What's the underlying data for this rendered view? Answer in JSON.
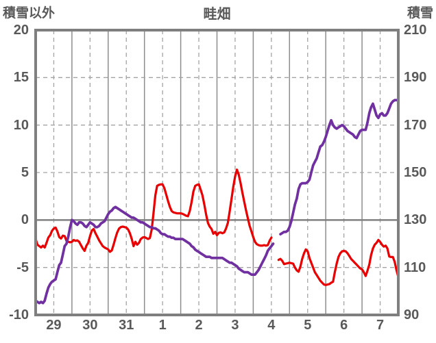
{
  "header": {
    "title": "畦畑",
    "left_axis_label": "積雪以外",
    "right_axis_label": "積雪"
  },
  "colors": {
    "background": "#ffffff",
    "text": "#595959",
    "frame": "#7f7f7f",
    "grid_major": "#8c8c8c",
    "grid_minor": "#a3a3a3",
    "zero_line": "#808080",
    "red_line": "#e80000",
    "purple_line": "#7030a0"
  },
  "chart_data": {
    "type": "line",
    "title": "畦畑",
    "left_axis": {
      "label": "積雪以外",
      "min": -10,
      "max": 20,
      "ticks": [
        20,
        15,
        10,
        5,
        0,
        -5,
        -10
      ]
    },
    "right_axis": {
      "label": "積雪",
      "min": 90,
      "max": 210,
      "ticks": [
        210,
        190,
        170,
        150,
        130,
        110,
        90
      ]
    },
    "x_axis": {
      "labels": [
        "29",
        "30",
        "31",
        "1",
        "2",
        "3",
        "4",
        "5",
        "6",
        "7"
      ],
      "days": 10,
      "label_position": "mid-day"
    },
    "grid": {
      "vertical_major": "solid at each day boundary",
      "vertical_minor": "dashed at mid-day",
      "horizontal": "dashed, solid at zero"
    },
    "series": [
      {
        "id": "red-line",
        "axis": "left",
        "color": "#e80000",
        "width": 3.25,
        "step": 0.05,
        "segments": [
          {
            "x0": 0.0,
            "y": [
              -2,
              -2.6,
              -2.75,
              -2.9,
              -2.7,
              -2.9,
              -2.4,
              -1.85,
              -1.6,
              -1.15,
              -0.9,
              -0.8,
              -1.2,
              -1.8,
              -1.95,
              -1.65,
              -1.7,
              -2.2,
              -2.3,
              -2.35,
              -2.3,
              -2.1,
              -2.2,
              -2.15,
              -2.3,
              -2.65,
              -3,
              -3.25,
              -2.7,
              -2.4,
              -1.7,
              -1.1,
              -0.95,
              -1.4,
              -1.75,
              -2.15,
              -2.45,
              -2.75,
              -2.9,
              -3,
              -3.1,
              -3.35,
              -3.2,
              -2.6,
              -1.9,
              -1.3,
              -0.9,
              -0.75,
              -0.7,
              -0.75,
              -0.8,
              -1,
              -1.4,
              -2,
              -2.75,
              -2.3,
              -2.6,
              -2.4,
              -2,
              -1.85,
              -1.8,
              -1.9,
              -2,
              -1.9,
              -1,
              0.7,
              2.6,
              3.6,
              3.7,
              3.75,
              3.75,
              3.35,
              2.7,
              2,
              1.4,
              0.95,
              0.8,
              0.75,
              0.7,
              0.7,
              0.7,
              0.65,
              0.55,
              0.45,
              0.4,
              0.95,
              1.9,
              3,
              3.6,
              3.7,
              3.75,
              3.2,
              2.6,
              1.65,
              0.6,
              -0.3,
              -0.7,
              -0.95,
              -1.45,
              -1.25,
              -1.6,
              -1.35,
              -1.3,
              -1.4,
              -1.3,
              -0.9,
              -0.3,
              0.9,
              2.2,
              3.5,
              4.6,
              5.3,
              4.8,
              3.9,
              2.9,
              1.95,
              1.05,
              0.2,
              -0.6,
              -1.2,
              -1.8,
              -2.3,
              -2.55,
              -2.65,
              -2.7,
              -2.7,
              -2.65,
              -2.7,
              -2.65,
              -2.2,
              -1.85
            ]
          },
          {
            "x0": 6.7,
            "y": [
              -4.2,
              -4.1,
              -4.3,
              -4.65,
              -4.6,
              -4.55,
              -4.5,
              -4.55,
              -4.6,
              -5,
              -5.3,
              -5.45,
              -4.9,
              -4.1,
              -3.5,
              -3.1,
              -3.3,
              -4,
              -4.5,
              -5,
              -5.5,
              -5.8,
              -6.1,
              -6.4,
              -6.6,
              -6.8,
              -6.85,
              -6.8,
              -6.75,
              -6.6,
              -6.5,
              -5.5,
              -4.6,
              -3.9,
              -3.5,
              -3.3,
              -3.25,
              -3.3,
              -3.5,
              -3.8,
              -4.1,
              -4.3,
              -4.5,
              -4.7,
              -4.9,
              -5.1,
              -5.2,
              -5.5,
              -5.9,
              -5.35,
              -4.7,
              -3.7,
              -3,
              -2.6,
              -2.4,
              -2.1,
              -2.3,
              -2.6,
              -2.8,
              -2.7,
              -3,
              -3.85,
              -3.9,
              -3.9,
              -4.4,
              -5.3,
              -6
            ]
          }
        ]
      },
      {
        "id": "purple-line",
        "axis": "right",
        "color": "#7030a0",
        "width": 3.75,
        "step": 0.05,
        "segments": [
          {
            "x0": 0.0,
            "y": [
              96,
              95.5,
              95,
              95.5,
              95,
              96,
              99,
              101.5,
              103,
              104,
              104.5,
              105,
              108,
              111,
              112,
              115.5,
              119,
              120,
              123,
              127,
              130,
              129.5,
              128.5,
              128,
              129,
              129,
              128.5,
              127.5,
              127,
              128,
              129,
              128.5,
              128,
              127,
              127,
              127.5,
              128.5,
              129,
              129.5,
              131,
              132.5,
              133.5,
              134,
              135,
              135.5,
              135,
              134.5,
              134,
              133.5,
              133,
              132.5,
              132,
              131.5,
              131,
              131,
              130.5,
              130,
              129.5,
              129,
              129,
              128.5,
              128,
              127.5,
              127,
              127,
              126.5,
              126.5,
              126,
              125.5,
              124.5,
              124,
              124,
              123.5,
              123,
              123,
              122.5,
              122.5,
              122,
              122,
              122,
              122,
              122,
              121.5,
              121,
              120.5,
              120,
              119,
              118.5,
              117.5,
              117,
              116.5,
              116,
              115.5,
              115,
              114.5,
              114.5,
              114.5,
              114,
              114,
              114,
              114,
              114,
              114,
              114,
              113.5,
              113,
              112.5,
              112,
              112,
              111.5,
              111,
              110.5,
              109.5,
              109,
              108.5,
              108,
              108,
              108,
              107.5,
              107,
              107,
              107,
              108,
              109,
              110.5,
              112,
              113.5,
              115,
              117,
              118,
              119,
              120
            ]
          },
          {
            "x0": 6.75,
            "y": [
              124,
              124.5,
              125,
              125,
              125.5,
              127,
              129.5,
              133,
              136.5,
              139,
              143,
              145,
              145.5,
              145.5,
              145.5,
              146,
              147,
              150,
              153,
              154.5,
              156,
              158.5,
              161,
              161.5,
              163,
              165,
              167.5,
              170,
              172,
              170,
              169,
              168.5,
              169,
              169.5,
              170,
              169.5,
              168.5,
              167.5,
              167,
              166.5,
              166,
              165,
              164.5,
              166,
              167.5,
              168,
              168,
              168,
              171,
              175,
              177.5,
              179,
              176.5,
              174,
              173,
              174.5,
              175,
              174,
              174,
              175,
              177,
              179,
              180,
              180.5,
              180.5,
              180.5
            ]
          }
        ]
      }
    ]
  }
}
